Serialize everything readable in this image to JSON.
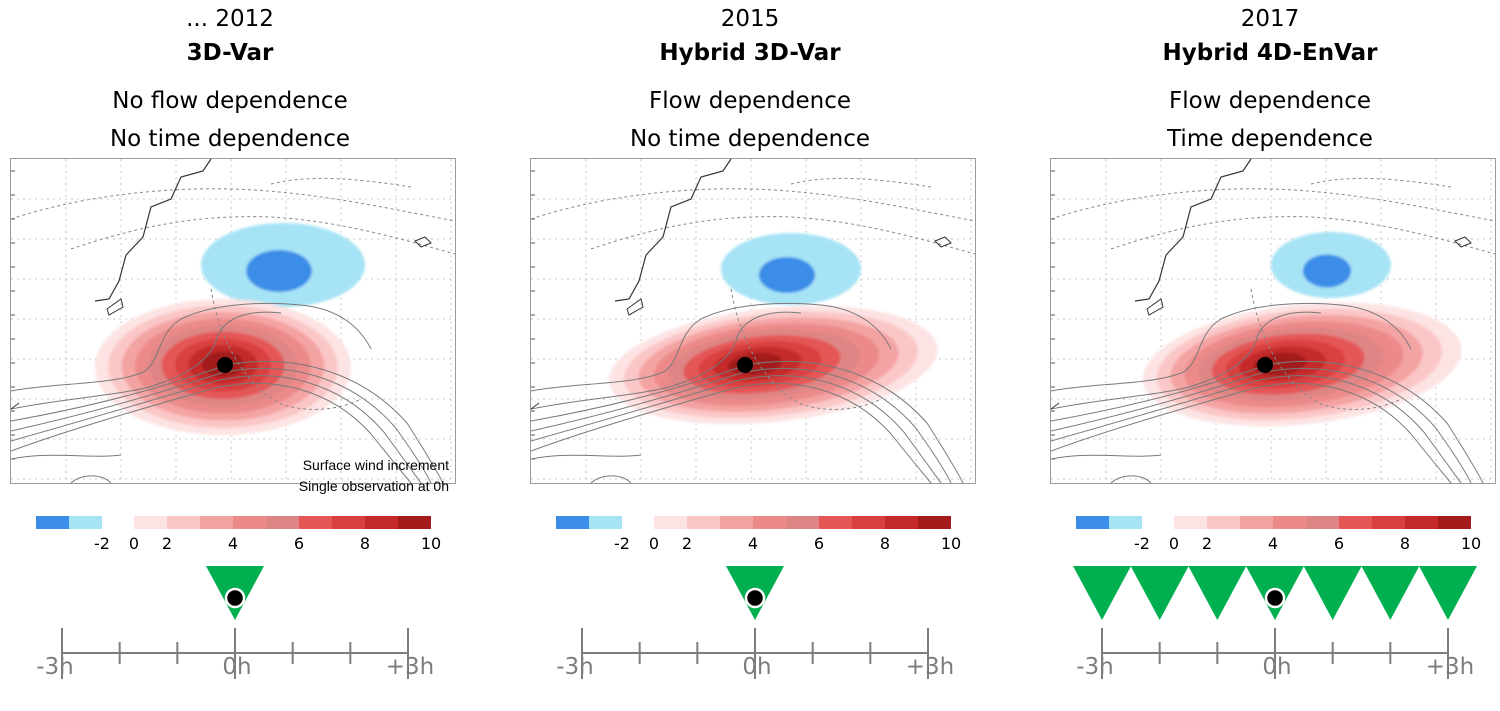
{
  "panels": [
    {
      "year": "... 2012",
      "method": "3D-Var",
      "line1": "No flow dependence",
      "line2": "No time dependence",
      "note1": "Surface wind increment",
      "note2": "Single observation at 0h",
      "observation_times": [
        0
      ],
      "increment_shape": "isotropic"
    },
    {
      "year": "2015",
      "method": "Hybrid 3D-Var",
      "line1": "Flow dependence",
      "line2": "No time dependence",
      "note1": "",
      "note2": "",
      "observation_times": [
        0
      ],
      "increment_shape": "flow"
    },
    {
      "year": "2017",
      "method": "Hybrid 4D-EnVar",
      "line1": "Flow dependence",
      "line2": "Time dependence",
      "note1": "",
      "note2": "",
      "observation_times": [
        -3,
        -2,
        -1,
        0,
        1,
        2,
        3
      ],
      "increment_shape": "flow-time"
    }
  ],
  "colorbar": {
    "negative_colors": [
      "#3b8de8",
      "#a6e3f5"
    ],
    "positive_colors": [
      "#fde3e3",
      "#fbc6c6",
      "#f4a3a3",
      "#ec8a8a",
      "#df8585",
      "#e55757",
      "#d93f3f",
      "#c42a2a",
      "#a31b1b"
    ],
    "ticks": [
      "-2",
      "0",
      "2",
      "4",
      "6",
      "8",
      "10"
    ]
  },
  "timeline": {
    "labels": [
      "-3h",
      "0h",
      "+3h"
    ],
    "marker_color": "#00b050"
  }
}
